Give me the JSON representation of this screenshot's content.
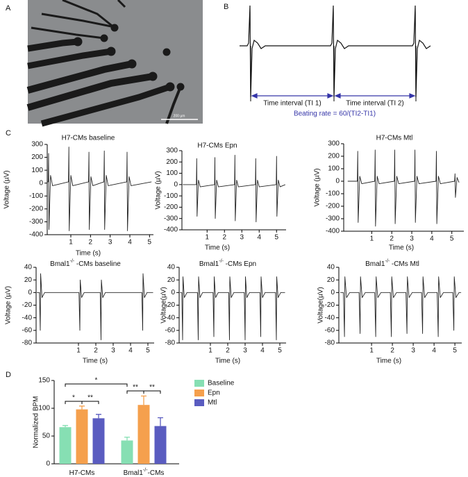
{
  "panels": {
    "labels": [
      "A",
      "B",
      "C",
      "D"
    ],
    "micrograph": {
      "scale_bar": "200 µm"
    },
    "schematic": {
      "interval_1": "Time interval (TI 1)",
      "interval_2": "Time interval (TI 2)",
      "rate": "Beating rate = 60/(TI2-TI1)"
    }
  },
  "chart_data": [
    {
      "type": "line",
      "title": "H7-CMs baseline",
      "x_label": "Time (s)",
      "y_label": "Voltage (µV)",
      "xlim": [
        -0.2,
        5.2
      ],
      "xticks": [
        1,
        2,
        3,
        4,
        5
      ],
      "ylim": [
        -400,
        300
      ],
      "yticks": [
        -400,
        -300,
        -200,
        -100,
        0,
        100,
        200,
        300
      ],
      "color": "#222222",
      "x": [
        -0.18,
        -0.15,
        -0.13,
        -0.11,
        -0.03,
        0.07,
        0.88,
        0.9,
        0.92,
        1.0,
        1.1,
        1.9,
        1.92,
        1.94,
        2.02,
        2.12,
        2.68,
        2.7,
        2.72,
        2.8,
        2.9,
        3.84,
        3.86,
        3.88,
        3.96,
        4.06,
        5.1
      ],
      "values": [
        10,
        10,
        230,
        -360,
        60,
        -20,
        10,
        280,
        -370,
        60,
        -20,
        10,
        240,
        -360,
        50,
        -20,
        10,
        250,
        -360,
        60,
        -20,
        10,
        240,
        -370,
        50,
        -20,
        10
      ]
    },
    {
      "type": "line",
      "title": "H7-CMs Epn",
      "x_label": "Time (s)",
      "y_label": "Voltage (µV)",
      "xlim": [
        -0.45,
        5.55
      ],
      "xticks": [
        1,
        2,
        3,
        4,
        5
      ],
      "ylim": [
        -400,
        300
      ],
      "yticks": [
        -400,
        -300,
        -200,
        -100,
        0,
        100,
        200,
        300
      ],
      "color": "#222222",
      "x": [
        -0.4,
        0.38,
        0.4,
        0.42,
        0.5,
        0.6,
        1.43,
        1.45,
        1.47,
        1.55,
        1.65,
        2.58,
        2.6,
        2.62,
        2.7,
        2.8,
        3.78,
        3.8,
        3.82,
        3.9,
        4.0,
        4.98,
        5.0,
        5.02,
        5.1,
        5.2,
        5.5
      ],
      "values": [
        0,
        0,
        230,
        -280,
        40,
        -20,
        0,
        240,
        -300,
        40,
        -20,
        0,
        260,
        -320,
        40,
        -20,
        0,
        230,
        -330,
        40,
        -20,
        0,
        250,
        -280,
        40,
        -20,
        0
      ]
    },
    {
      "type": "line",
      "title": "H7-CMs Mtl",
      "x_label": "Time (s)",
      "y_label": "Voltage (µV)",
      "xlim": [
        -0.4,
        5.6
      ],
      "xticks": [
        1,
        2,
        3,
        4,
        5
      ],
      "ylim": [
        -400,
        300
      ],
      "yticks": [
        -400,
        -300,
        -200,
        -100,
        0,
        100,
        200,
        300
      ],
      "color": "#222222",
      "x": [
        -0.2,
        0.28,
        0.3,
        0.32,
        0.4,
        0.5,
        1.15,
        1.17,
        1.19,
        1.27,
        1.37,
        2.13,
        2.15,
        2.17,
        2.25,
        2.35,
        3.14,
        3.16,
        3.18,
        3.26,
        3.36,
        4.21,
        4.23,
        4.25,
        4.33,
        4.43,
        5.14,
        5.16,
        5.18,
        5.26,
        5.36
      ],
      "values": [
        0,
        0,
        240,
        -330,
        40,
        -20,
        0,
        250,
        -360,
        40,
        -20,
        0,
        250,
        -340,
        40,
        -20,
        0,
        250,
        -330,
        40,
        -20,
        0,
        240,
        -340,
        40,
        -20,
        0,
        60,
        -130,
        30,
        -10
      ]
    },
    {
      "type": "line",
      "title": [
        "Bmal1",
        "-/-",
        " -CMs baseline"
      ],
      "x_label": "Time (s)",
      "y_label": "Voltage (µV)",
      "xlim": [
        -1.44,
        5.36
      ],
      "xticks": [
        1,
        2,
        3,
        4,
        5
      ],
      "ylim": [
        -80,
        40
      ],
      "yticks": [
        -80,
        -60,
        -40,
        -20,
        0,
        20,
        40
      ],
      "color": "#222222",
      "x": [
        -1.4,
        -1.25,
        -1.2,
        -1.18,
        -1.1,
        -0.95,
        1.03,
        1.08,
        1.1,
        1.18,
        1.33,
        2.25,
        2.3,
        2.32,
        2.4,
        2.55,
        4.65,
        4.7,
        4.72,
        4.8,
        4.95,
        5.3
      ],
      "values": [
        0,
        0,
        -60,
        30,
        -8,
        0,
        0,
        -60,
        20,
        -8,
        0,
        0,
        -75,
        20,
        -8,
        0,
        0,
        -60,
        30,
        -8,
        0,
        0
      ]
    },
    {
      "type": "line",
      "title": [
        "Bmal1",
        "-/-",
        " -CMs Epn"
      ],
      "x_label": "Time (s)",
      "y_label": "Voltage(µV)",
      "xlim": [
        -0.8,
        5.36
      ],
      "xticks": [
        1,
        2,
        3,
        4,
        5
      ],
      "ylim": [
        -80,
        40
      ],
      "yticks": [
        -80,
        -60,
        -40,
        -20,
        0,
        20,
        40
      ],
      "color": "#222222",
      "x": [
        -0.75,
        -0.65,
        -0.6,
        -0.58,
        -0.5,
        -0.35,
        0.25,
        0.3,
        0.32,
        0.4,
        0.55,
        1.15,
        1.2,
        1.22,
        1.3,
        1.45,
        2.05,
        2.1,
        2.12,
        2.2,
        2.35,
        2.95,
        3.0,
        3.02,
        3.1,
        3.25,
        3.85,
        3.9,
        3.92,
        4.0,
        4.15,
        4.75,
        4.8,
        4.82,
        4.9,
        5.05,
        5.3
      ],
      "values": [
        0,
        0,
        -75,
        25,
        -8,
        0,
        0,
        -75,
        25,
        -8,
        0,
        0,
        -70,
        25,
        -8,
        0,
        0,
        -75,
        25,
        -8,
        0,
        0,
        -75,
        25,
        -8,
        0,
        0,
        -70,
        25,
        -8,
        0,
        0,
        -75,
        25,
        -8,
        0,
        0
      ]
    },
    {
      "type": "line",
      "title": [
        "Bmal1",
        "-/-",
        " -CMs Mtl"
      ],
      "x_label": "Time (s)",
      "y_label": "Voltage(µV)",
      "xlim": [
        -0.57,
        5.33
      ],
      "xticks": [
        1,
        2,
        3,
        4,
        5
      ],
      "ylim": [
        -80,
        40
      ],
      "yticks": [
        -80,
        -60,
        -40,
        -20,
        0,
        20,
        40
      ],
      "color": "#222222",
      "x": [
        -0.5,
        -0.35,
        -0.3,
        -0.28,
        -0.2,
        -0.05,
        0.4,
        0.45,
        0.47,
        0.55,
        0.7,
        1.15,
        1.2,
        1.22,
        1.3,
        1.45,
        1.9,
        1.95,
        1.97,
        2.05,
        2.2,
        2.65,
        2.7,
        2.72,
        2.8,
        2.95,
        3.4,
        3.45,
        3.47,
        3.55,
        3.7,
        4.15,
        4.2,
        4.22,
        4.3,
        4.45,
        4.9,
        4.95,
        4.97,
        5.05,
        5.2,
        5.3
      ],
      "values": [
        0,
        0,
        -70,
        25,
        -8,
        0,
        0,
        -65,
        25,
        -8,
        0,
        0,
        -70,
        25,
        -8,
        0,
        0,
        -70,
        25,
        -8,
        0,
        0,
        -65,
        25,
        -8,
        0,
        0,
        -65,
        25,
        -8,
        0,
        0,
        -70,
        25,
        -8,
        0,
        0,
        -60,
        25,
        -8,
        0,
        0
      ]
    },
    {
      "type": "bar",
      "y_label": "Normalized BPM",
      "categories": [
        [
          "H7-CMs"
        ],
        [
          "Bmal1",
          "-/-",
          "-CMs"
        ]
      ],
      "ylim": [
        0,
        150
      ],
      "yticks": [
        0,
        50,
        100,
        150
      ],
      "legend": "right",
      "series": [
        {
          "name": "Baseline",
          "color": "#86dfb3",
          "values": [
            66,
            42
          ],
          "errors": [
            3,
            6
          ]
        },
        {
          "name": "Epn",
          "color": "#f5a04d",
          "values": [
            98,
            106
          ],
          "errors": [
            6,
            16
          ]
        },
        {
          "name": "Mtl",
          "color": "#5a5cc0",
          "values": [
            82,
            68
          ],
          "errors": [
            7,
            15
          ]
        }
      ],
      "annotations": [
        "*",
        "*",
        "**",
        "**",
        "**"
      ]
    }
  ]
}
